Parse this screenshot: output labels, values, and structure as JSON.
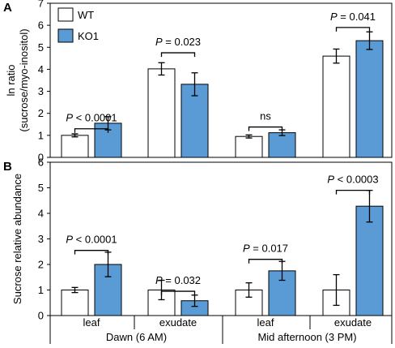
{
  "colors": {
    "wt": "#ffffff",
    "ko": "#5b9bd5",
    "stroke": "#000000"
  },
  "legend": {
    "wt": "WT",
    "ko": "KO1",
    "placement": "top-left"
  },
  "chart_data": [
    {
      "type": "bar",
      "panel": "A",
      "ylabel_line1": "ln ratio",
      "ylabel_line2": "(sucrose/myo-inositol)",
      "ylim": [
        0,
        7
      ],
      "yticks": [
        "0",
        "1",
        "2",
        "3",
        "4",
        "5",
        "6",
        "7"
      ],
      "groups": [
        "Dawn leaf",
        "Dawn exudate",
        "Mid afternoon leaf",
        "Mid afternoon exudate"
      ],
      "series": [
        {
          "name": "WT",
          "values": [
            1.0,
            4.02,
            0.95,
            4.6
          ],
          "errors": [
            0.07,
            0.28,
            0.07,
            0.32
          ]
        },
        {
          "name": "KO1",
          "values": [
            1.55,
            3.32,
            1.12,
            5.3
          ],
          "errors": [
            0.3,
            0.52,
            0.13,
            0.4
          ]
        }
      ],
      "annotations": [
        "P < 0.0001",
        "P = 0.023",
        "ns",
        "P = 0.041"
      ],
      "annotation_bracket_y": [
        1.3,
        4.75,
        1.38,
        5.9
      ]
    },
    {
      "type": "bar",
      "panel": "B",
      "ylabel": "Sucrose relative abundance",
      "ylim": [
        0,
        6
      ],
      "yticks": [
        "0",
        "1",
        "2",
        "3",
        "4",
        "5",
        "6"
      ],
      "groups": [
        "Dawn leaf",
        "Dawn exudate",
        "Mid afternoon leaf",
        "Mid afternoon exudate"
      ],
      "series": [
        {
          "name": "WT",
          "values": [
            1.0,
            1.0,
            1.0,
            1.0
          ],
          "errors": [
            0.1,
            0.38,
            0.28,
            0.6
          ]
        },
        {
          "name": "KO1",
          "values": [
            2.0,
            0.58,
            1.75,
            4.28
          ],
          "errors": [
            0.48,
            0.22,
            0.37,
            0.62
          ]
        }
      ],
      "annotations": [
        "P < 0.0001",
        "P = 0.032",
        "P = 0.017",
        "P < 0.0003"
      ],
      "annotation_bracket_y": [
        2.55,
        0.95,
        2.2,
        4.9
      ]
    }
  ],
  "x_axis": {
    "tissue_labels": [
      "leaf",
      "exudate",
      "leaf",
      "exudate"
    ],
    "time_labels": [
      "Dawn (6 AM)",
      "Mid afternoon (3 PM)"
    ]
  }
}
